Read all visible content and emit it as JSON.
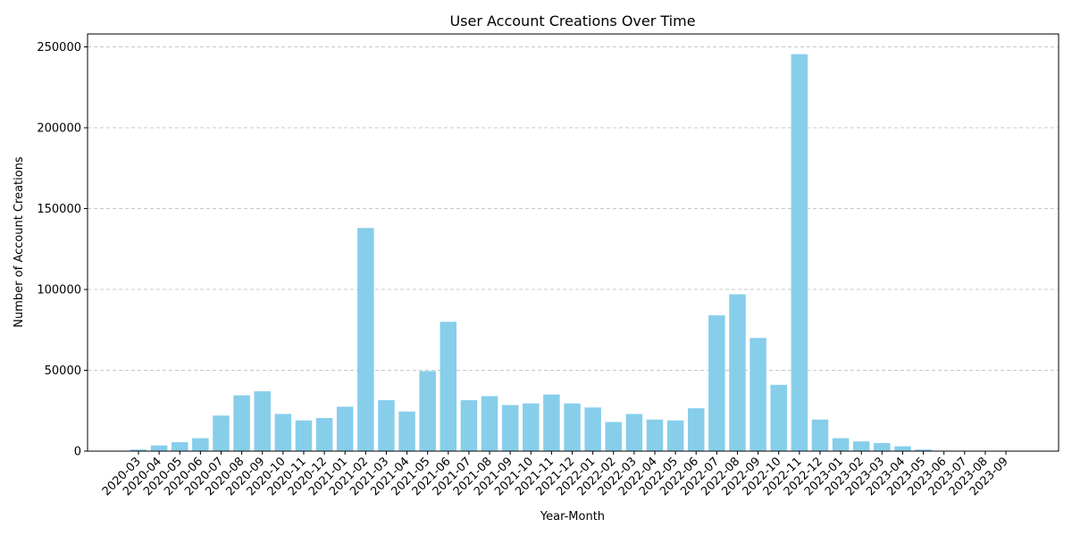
{
  "chart_data": {
    "type": "bar",
    "title": "User Account Creations Over Time",
    "xlabel": "Year-Month",
    "ylabel": "Number of Account Creations",
    "ylim": [
      0,
      258000
    ],
    "yticks": [
      0,
      50000,
      100000,
      150000,
      200000,
      250000
    ],
    "grid": "y-dashed",
    "bar_color": "#87CEEB",
    "categories": [
      "2020-03",
      "2020-04",
      "2020-05",
      "2020-06",
      "2020-07",
      "2020-08",
      "2020-09",
      "2020-10",
      "2020-11",
      "2020-12",
      "2021-01",
      "2021-02",
      "2021-03",
      "2021-04",
      "2021-05",
      "2021-06",
      "2021-07",
      "2021-08",
      "2021-09",
      "2021-10",
      "2021-11",
      "2021-12",
      "2022-01",
      "2022-02",
      "2022-03",
      "2022-04",
      "2022-05",
      "2022-06",
      "2022-07",
      "2022-08",
      "2022-09",
      "2022-10",
      "2022-11",
      "2022-12",
      "2023-01",
      "2023-02",
      "2023-03",
      "2023-04",
      "2023-05",
      "2023-06",
      "2023-07",
      "2023-08",
      "2023-09"
    ],
    "values": [
      1000,
      3500,
      5500,
      8000,
      22000,
      34500,
      37000,
      23000,
      19000,
      20500,
      27500,
      138000,
      31500,
      24500,
      49500,
      80000,
      31500,
      34000,
      28500,
      29500,
      35000,
      29500,
      27000,
      18000,
      23000,
      19500,
      19000,
      26500,
      84000,
      97000,
      70000,
      41000,
      245500,
      19500,
      8000,
      6000,
      5000,
      3000,
      1000,
      300,
      200,
      100,
      100
    ]
  }
}
